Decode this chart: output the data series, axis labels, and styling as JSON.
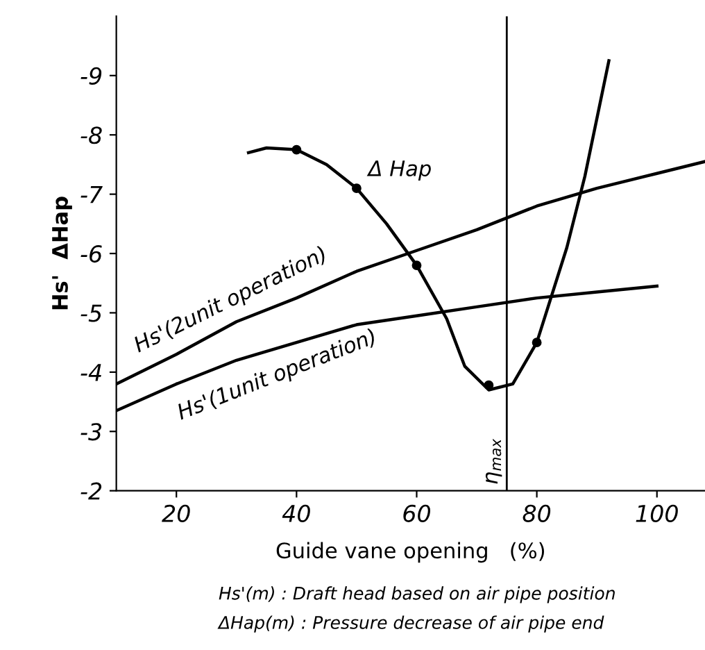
{
  "chart_data": {
    "type": "line",
    "xlabel": "Guide vane opening   (%)",
    "ylabel": "Hs'  ΔHap",
    "xlim": [
      10,
      108
    ],
    "xticks": [
      20,
      40,
      60,
      80,
      100
    ],
    "ylim": [
      -2,
      -10
    ],
    "yticks": [
      -2,
      -3,
      -4,
      -5,
      -6,
      -7,
      -8,
      -9
    ],
    "grid": false,
    "line_style": "solid",
    "series": [
      {
        "name": "Hs'(2unit operation)",
        "color": "#000000",
        "x": [
          10,
          20,
          30,
          40,
          50,
          60,
          70,
          80,
          90,
          100,
          108
        ],
        "values": [
          -3.8,
          -4.3,
          -4.85,
          -5.25,
          -5.7,
          -6.05,
          -6.4,
          -6.8,
          -7.1,
          -7.35,
          -7.55
        ]
      },
      {
        "name": "Hs'(1unit operation)",
        "color": "#000000",
        "x": [
          10,
          20,
          30,
          40,
          50,
          60,
          70,
          80,
          90,
          100
        ],
        "values": [
          -3.35,
          -3.8,
          -4.2,
          -4.5,
          -4.8,
          -4.95,
          -5.1,
          -5.25,
          -5.35,
          -5.45
        ]
      },
      {
        "name": "Δ Hap",
        "color": "#000000",
        "x": [
          32,
          35,
          40,
          45,
          50,
          55,
          60,
          65,
          68,
          72,
          76,
          80,
          85,
          88,
          92
        ],
        "values": [
          -7.7,
          -7.78,
          -7.75,
          -7.5,
          -7.1,
          -6.5,
          -5.8,
          -4.9,
          -4.1,
          -3.7,
          -3.8,
          -4.5,
          -6.1,
          -7.3,
          -9.25
        ]
      },
      {
        "type": "scatter",
        "marker": "circle",
        "color": "#000000",
        "x": [
          40,
          50,
          60,
          72,
          80
        ],
        "values": [
          -7.75,
          -7.1,
          -5.8,
          -3.78,
          -4.5
        ]
      }
    ],
    "ref_lines": [
      {
        "axis": "x",
        "value": 75,
        "label": "η$_{max}$",
        "color": "#000000"
      }
    ],
    "annotations": [
      "Hs'(m) : Draft head based on air pipe position",
      "ΔHap(m) : Pressure decrease of air pipe end"
    ]
  }
}
